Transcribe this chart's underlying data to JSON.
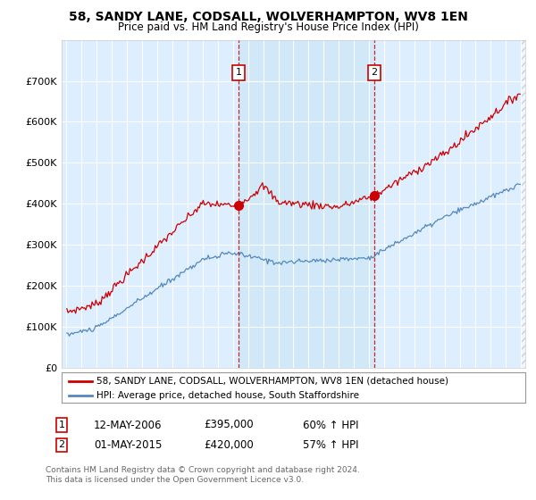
{
  "title1": "58, SANDY LANE, CODSALL, WOLVERHAMPTON, WV8 1EN",
  "title2": "Price paid vs. HM Land Registry's House Price Index (HPI)",
  "legend_line1": "58, SANDY LANE, CODSALL, WOLVERHAMPTON, WV8 1EN (detached house)",
  "legend_line2": "HPI: Average price, detached house, South Staffordshire",
  "annotation1": {
    "label": "1",
    "date": "12-MAY-2006",
    "price": "£395,000",
    "hpi": "60% ↑ HPI",
    "x_year": 2006.37
  },
  "annotation2": {
    "label": "2",
    "date": "01-MAY-2015",
    "price": "£420,000",
    "hpi": "57% ↑ HPI",
    "x_year": 2015.33
  },
  "footnote1": "Contains HM Land Registry data © Crown copyright and database right 2024.",
  "footnote2": "This data is licensed under the Open Government Licence v3.0.",
  "sale1_y": 395000,
  "sale2_y": 420000,
  "property_color": "#cc0000",
  "hpi_color": "#5588bb",
  "background_color": "#ddeeff",
  "shaded_color": "#d0e8f8",
  "ylim": [
    0,
    800000
  ],
  "yticks": [
    0,
    100000,
    200000,
    300000,
    400000,
    500000,
    600000,
    700000
  ],
  "ytick_labels": [
    "£0",
    "£100K",
    "£200K",
    "£300K",
    "£400K",
    "£500K",
    "£600K",
    "£700K"
  ],
  "xmin": 1994.7,
  "xmax": 2025.3
}
